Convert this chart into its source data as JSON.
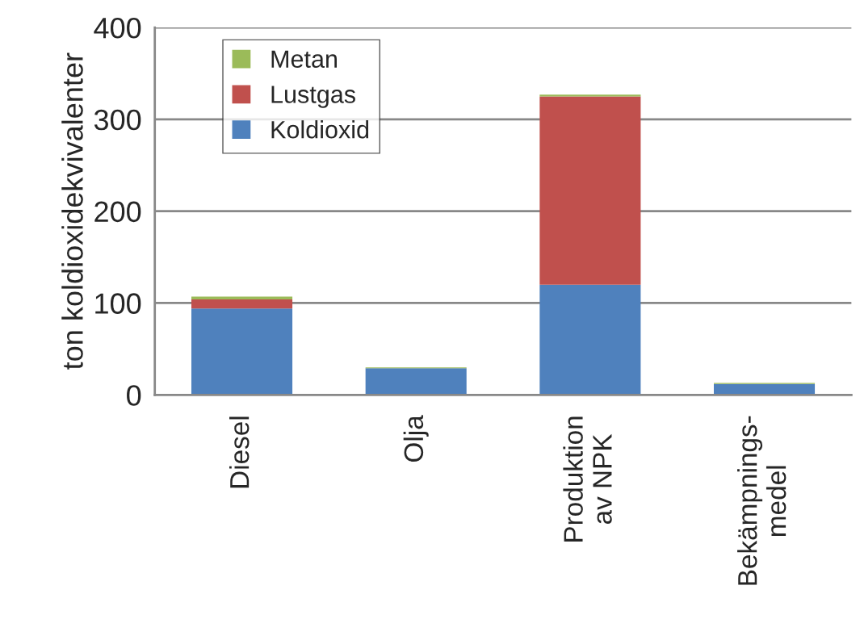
{
  "chart_data": {
    "type": "bar",
    "stacked": true,
    "ylabel": "ton koldioxidekvivalenter",
    "categories": [
      "Diesel",
      "Olja",
      "Produktion\nav NPK",
      "Bekämpnings-\nmedel"
    ],
    "series": [
      {
        "name": "Koldioxid",
        "color": "#4f81bd",
        "values": [
          94,
          29,
          120,
          12
        ]
      },
      {
        "name": "Lustgas",
        "color": "#c0504d",
        "values": [
          10,
          0,
          205,
          0
        ]
      },
      {
        "name": "Metan",
        "color": "#9bbb59",
        "values": [
          3,
          1,
          2,
          1
        ]
      }
    ],
    "ylim": [
      0,
      400
    ],
    "yticks": [
      0,
      100,
      200,
      300,
      400
    ],
    "grid": "y",
    "legend": "top left"
  }
}
